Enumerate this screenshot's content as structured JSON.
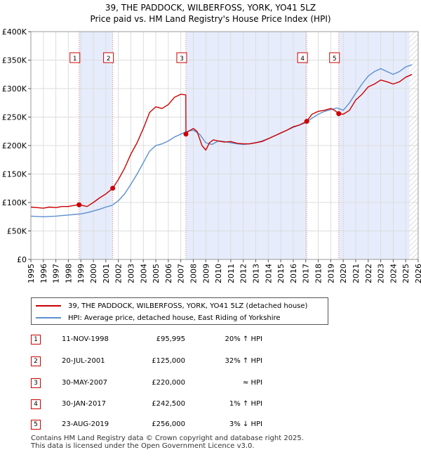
{
  "chart_data": {
    "type": "line",
    "title_lines": [
      "39, THE PADDOCK, WILBERFOSS, YORK, YO41 5LZ",
      "Price paid vs. HM Land Registry's House Price Index (HPI)"
    ],
    "x_range": [
      1995,
      2026
    ],
    "ylim": [
      0,
      400000
    ],
    "y_ticks": [
      0,
      50000,
      100000,
      150000,
      200000,
      250000,
      300000,
      350000,
      400000
    ],
    "y_tick_labels": [
      "£0",
      "£50K",
      "£100K",
      "£150K",
      "£200K",
      "£250K",
      "£300K",
      "£350K",
      "£400K"
    ],
    "x_ticks": [
      1995,
      1996,
      1997,
      1998,
      1999,
      2000,
      2001,
      2002,
      2003,
      2004,
      2005,
      2006,
      2007,
      2008,
      2009,
      2010,
      2011,
      2012,
      2013,
      2014,
      2015,
      2016,
      2017,
      2018,
      2019,
      2020,
      2021,
      2022,
      2023,
      2024,
      2025,
      2026
    ],
    "x_tick_labels": [
      "1995",
      "1996",
      "1997",
      "1998",
      "1999",
      "2000",
      "2001",
      "2002",
      "2003",
      "2004",
      "2005",
      "2006",
      "2007",
      "2008",
      "2009",
      "2010",
      "2011",
      "2012",
      "2013",
      "2014",
      "2015",
      "2016",
      "2017",
      "2018",
      "2019",
      "2020",
      "2021",
      "2022",
      "2023",
      "2024",
      "2025",
      "2026"
    ],
    "grid": true,
    "colors": {
      "property": "#cc0000",
      "hpi": "#5b8fd1",
      "band": "#e6ecfb",
      "grid": "#dddddd",
      "future_hatch": "#bbbbbb"
    },
    "shaded_bands": [
      [
        1998.86,
        2001.55
      ],
      [
        2007.41,
        2017.08
      ],
      [
        2019.64,
        2025.3
      ]
    ],
    "future_start": 2025.3,
    "series": [
      {
        "name": "39, THE PADDOCK, WILBERFOSS, YORK, YO41 5LZ (detached house)",
        "color": "#cc0000",
        "x": [
          1995.0,
          1995.5,
          1996.0,
          1996.5,
          1997.0,
          1997.5,
          1998.0,
          1998.5,
          1998.86,
          1999.5,
          2000.0,
          2000.5,
          2001.0,
          2001.55,
          2002.0,
          2002.5,
          2003.0,
          2003.5,
          2004.0,
          2004.5,
          2005.0,
          2005.5,
          2006.0,
          2006.5,
          2007.0,
          2007.4,
          2007.41,
          2007.6,
          2008.0,
          2008.3,
          2008.7,
          2009.0,
          2009.3,
          2009.6,
          2010.0,
          2010.5,
          2011.0,
          2011.5,
          2012.0,
          2012.5,
          2013.0,
          2013.5,
          2014.0,
          2014.5,
          2015.0,
          2015.5,
          2016.0,
          2016.5,
          2017.08,
          2017.5,
          2018.0,
          2018.5,
          2019.0,
          2019.3,
          2019.64,
          2020.0,
          2020.5,
          2021.0,
          2021.5,
          2022.0,
          2022.5,
          2023.0,
          2023.5,
          2024.0,
          2024.5,
          2025.0,
          2025.5
        ],
        "y": [
          92000,
          91000,
          90000,
          92000,
          91000,
          93000,
          93000,
          95000,
          95995,
          93000,
          100000,
          108000,
          115000,
          125000,
          140000,
          160000,
          185000,
          205000,
          230000,
          258000,
          268000,
          265000,
          272000,
          285000,
          290000,
          289000,
          220000,
          225000,
          230000,
          225000,
          200000,
          192000,
          205000,
          210000,
          208000,
          206000,
          207000,
          204000,
          203000,
          203000,
          205000,
          207000,
          212000,
          217000,
          222000,
          227000,
          233000,
          236000,
          242500,
          255000,
          260000,
          262000,
          265000,
          262000,
          256000,
          255000,
          262000,
          280000,
          290000,
          303000,
          308000,
          315000,
          312000,
          308000,
          312000,
          320000,
          325000
        ]
      },
      {
        "name": "HPI: Average price, detached house, East Riding of Yorkshire",
        "color": "#5b8fd1",
        "x": [
          1995.0,
          1995.5,
          1996.0,
          1996.5,
          1997.0,
          1997.5,
          1998.0,
          1998.5,
          1999.0,
          1999.5,
          2000.0,
          2000.5,
          2001.0,
          2001.5,
          2002.0,
          2002.5,
          2003.0,
          2003.5,
          2004.0,
          2004.5,
          2005.0,
          2005.5,
          2006.0,
          2006.5,
          2007.0,
          2007.5,
          2008.0,
          2008.5,
          2009.0,
          2009.5,
          2010.0,
          2010.5,
          2011.0,
          2011.5,
          2012.0,
          2012.5,
          2013.0,
          2013.5,
          2014.0,
          2014.5,
          2015.0,
          2015.5,
          2016.0,
          2016.5,
          2017.0,
          2017.5,
          2018.0,
          2018.5,
          2019.0,
          2019.5,
          2020.0,
          2020.5,
          2021.0,
          2021.5,
          2022.0,
          2022.5,
          2023.0,
          2023.5,
          2024.0,
          2024.5,
          2025.0,
          2025.5
        ],
        "y": [
          76000,
          75500,
          75000,
          75500,
          76000,
          77000,
          78000,
          79000,
          80000,
          82000,
          85000,
          88000,
          92000,
          95000,
          103000,
          115000,
          132000,
          150000,
          170000,
          190000,
          200000,
          203000,
          208000,
          215000,
          220000,
          225000,
          227000,
          220000,
          205000,
          202000,
          208000,
          207000,
          205000,
          203000,
          202000,
          203000,
          205000,
          208000,
          212000,
          217000,
          222000,
          227000,
          232000,
          236000,
          240000,
          248000,
          255000,
          260000,
          263000,
          266000,
          262000,
          275000,
          292000,
          308000,
          322000,
          330000,
          335000,
          330000,
          325000,
          330000,
          338000,
          342000
        ]
      }
    ],
    "sales": [
      {
        "num": "1",
        "x": 1998.86,
        "y": 95995,
        "date": "11-NOV-1998",
        "price": "£95,995",
        "hpi": "20% ↑ HPI"
      },
      {
        "num": "2",
        "x": 2001.55,
        "y": 125000,
        "date": "20-JUL-2001",
        "price": "£125,000",
        "hpi": "32% ↑ HPI"
      },
      {
        "num": "3",
        "x": 2007.41,
        "y": 220000,
        "date": "30-MAY-2007",
        "price": "£220,000",
        "hpi": "≈ HPI"
      },
      {
        "num": "4",
        "x": 2017.08,
        "y": 242500,
        "date": "30-JAN-2017",
        "price": "£242,500",
        "hpi": "1% ↑ HPI"
      },
      {
        "num": "5",
        "x": 2019.64,
        "y": 256000,
        "date": "23-AUG-2019",
        "price": "£256,000",
        "hpi": "3% ↓ HPI"
      }
    ]
  },
  "legend": {
    "property_label": "39, THE PADDOCK, WILBERFOSS, YORK, YO41 5LZ (detached house)",
    "hpi_label": "HPI: Average price, detached house, East Riding of Yorkshire"
  },
  "footer": {
    "line1": "Contains HM Land Registry data © Crown copyright and database right 2025.",
    "line2": "This data is licensed under the Open Government Licence v3.0."
  }
}
